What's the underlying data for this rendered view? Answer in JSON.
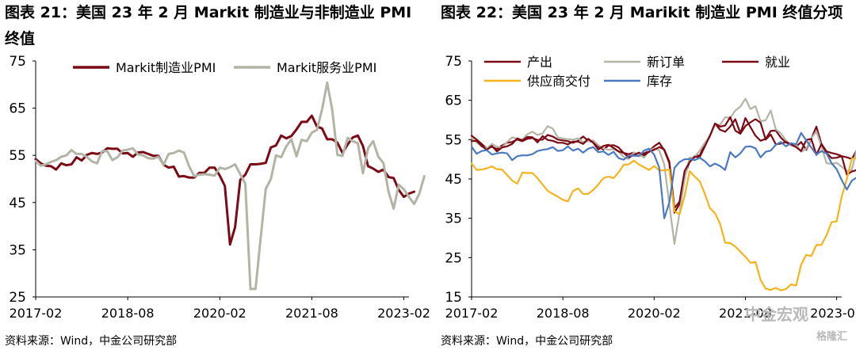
{
  "page": {
    "watermark_brand": "中金宏观",
    "watermark_site": "格隆汇"
  },
  "chart_data": [
    {
      "type": "line",
      "title": "图表 21：美国 23 年 2 月 Markit 制造业与非制造业 PMI 终值",
      "source": "资料来源：Wind，中金公司研究部",
      "ylim": [
        25,
        75
      ],
      "yticks": [
        25,
        35,
        45,
        55,
        65,
        75
      ],
      "xlim": [
        "2017-02",
        "2023-03"
      ],
      "xticks": [
        "2017-02",
        "2018-08",
        "2020-02",
        "2021-08",
        "2023-02"
      ],
      "legend_placement": "top",
      "grid": false,
      "series": [
        {
          "name": "Markit制造业PMI",
          "color": "#7b0a14",
          "start": "2017-02",
          "values": [
            54.2,
            53.3,
            52.8,
            52.7,
            52.0,
            53.3,
            52.9,
            53.1,
            54.6,
            53.9,
            55.1,
            55.5,
            55.3,
            55.6,
            56.5,
            56.4,
            56.4,
            55.4,
            55.5,
            54.7,
            55.6,
            55.7,
            55.3,
            54.9,
            54.9,
            53.0,
            52.4,
            52.6,
            50.5,
            50.6,
            50.3,
            50.3,
            51.3,
            51.3,
            52.4,
            52.4,
            50.7,
            48.5,
            36.1,
            39.8,
            49.8,
            50.9,
            53.1,
            53.1,
            53.2,
            53.4,
            56.7,
            57.1,
            59.2,
            58.6,
            59.1,
            60.5,
            62.1,
            62.1,
            63.4,
            61.1,
            60.7,
            58.4,
            58.4,
            57.7,
            55.5,
            57.3,
            58.8,
            59.2,
            57.0,
            52.7,
            52.2,
            51.5,
            52.0,
            50.4,
            50.2,
            47.7,
            46.2,
            46.9,
            47.3
          ],
          "note": ""
        },
        {
          "name": "Markit服务业PMI",
          "color": "#b4b4a6",
          "start": "2017-02",
          "values": [
            53.8,
            52.8,
            53.1,
            53.6,
            54.0,
            54.7,
            55.0,
            56.1,
            55.3,
            55.3,
            54.7,
            53.7,
            53.3,
            55.9,
            55.9,
            54.0,
            54.6,
            56.0,
            56.2,
            56.5,
            55.2,
            55.0,
            54.4,
            54.3,
            54.7,
            53.0,
            55.3,
            55.5,
            56.0,
            55.6,
            52.7,
            50.6,
            50.9,
            51.0,
            50.9,
            50.7,
            52.4,
            52.1,
            52.5,
            53.1,
            51.0,
            49.0,
            26.7,
            26.7,
            37.5,
            47.9,
            50.0,
            55.0,
            54.6,
            56.9,
            58.4,
            54.8,
            58.3,
            58.0,
            59.8,
            60.4,
            64.7,
            70.4,
            64.6,
            55.1,
            54.9,
            58.7,
            58.0,
            57.6,
            51.2,
            56.5,
            58.0,
            54.7,
            53.4,
            47.3,
            43.7,
            48.8,
            47.8,
            46.2,
            44.7,
            46.8,
            50.6
          ],
          "note": ""
        }
      ]
    },
    {
      "type": "line",
      "title": "图表 22：美国 23 年 2 月 Marikit 制造业 PMI 终值分项",
      "source": "资料来源：Wind，中金公司研究部",
      "ylim": [
        15,
        75
      ],
      "yticks": [
        15,
        25,
        35,
        45,
        55,
        65,
        75
      ],
      "xlim": [
        "2017-02",
        "2023-03"
      ],
      "xticks": [
        "2017-02",
        "2018-08",
        "2020-02",
        "2021-08",
        "2023-02"
      ],
      "legend_placement": "top",
      "grid": false,
      "series": [
        {
          "name": "产出",
          "color": "#7b0a14",
          "start": "2017-02",
          "values": [
            56.0,
            55.0,
            53.9,
            52.7,
            53.2,
            52.6,
            53.5,
            54.2,
            54.4,
            55.0,
            54.6,
            55.2,
            55.4,
            54.9,
            55.0,
            56.2,
            55.8,
            55.0,
            54.8,
            54.6,
            54.2,
            54.7,
            55.8,
            54.7,
            54.4,
            53.2,
            52.5,
            53.5,
            53.6,
            53.0,
            51.6,
            51.3,
            51.7,
            51.0,
            51.5,
            52.1,
            53.3,
            54.2,
            52.3,
            49.0,
            36.4,
            38.6,
            45.7,
            49.4,
            50.8,
            51.0,
            53.8,
            55.9,
            59.1,
            57.5,
            57.0,
            58.3,
            60.2,
            56.6,
            60.5,
            58.2,
            56.0,
            54.7,
            55.2,
            57.2,
            57.3,
            55.5,
            54.3,
            53.6,
            53.2,
            54.4,
            52.4,
            55.2,
            58.3,
            53.9,
            52.0,
            51.6,
            51.3,
            50.8,
            50.5,
            50.1,
            52.4
          ],
          "note": ""
        },
        {
          "name": "新订单",
          "color": "#b4b4a6",
          "start": "2017-02",
          "values": [
            55.4,
            54.3,
            53.2,
            52.8,
            53.9,
            53.2,
            53.0,
            54.4,
            55.6,
            55.2,
            55.0,
            56.4,
            57.0,
            56.2,
            56.6,
            58.4,
            57.8,
            55.6,
            55.3,
            55.1,
            55.0,
            55.3,
            54.4,
            54.6,
            54.8,
            53.6,
            52.8,
            52.4,
            52.6,
            51.9,
            50.6,
            50.1,
            51.7,
            51.2,
            50.4,
            52.2,
            52.8,
            52.3,
            48.7,
            38.5,
            28.5,
            36.3,
            45.0,
            50.4,
            50.6,
            52.2,
            54.2,
            55.9,
            58.8,
            58.8,
            60.7,
            60.5,
            62.4,
            63.4,
            65.4,
            62.8,
            63.5,
            59.7,
            59.9,
            62.4,
            57.6,
            56.6,
            54.8,
            53.5,
            53.7,
            51.9,
            52.7,
            55.3,
            57.1,
            53.3,
            49.0,
            48.8,
            49.1,
            48.1,
            47.0,
            47.4,
            52.8
          ],
          "note": ""
        },
        {
          "name": "就业",
          "color": "#7b0a14",
          "start": "2017-02",
          "values": [
            54.6,
            54.7,
            53.4,
            52.4,
            53.4,
            52.0,
            53.0,
            53.3,
            53.9,
            55.3,
            54.8,
            55.7,
            55.6,
            54.3,
            55.9,
            54.9,
            54.7,
            54.2,
            54.2,
            53.8,
            54.5,
            54.5,
            53.9,
            55.2,
            54.2,
            52.5,
            53.4,
            53.7,
            52.9,
            52.0,
            51.6,
            50.5,
            51.1,
            51.7,
            51.0,
            51.9,
            52.4,
            53.1,
            52.5,
            49.4,
            37.6,
            39.2,
            47.0,
            49.3,
            50.6,
            50.6,
            53.3,
            56.0,
            59.1,
            58.3,
            58.6,
            60.7,
            57.3,
            56.5,
            58.5,
            59.4,
            60.2,
            59.3,
            55.0,
            56.3,
            53.8,
            54.0,
            54.4,
            53.8,
            53.1,
            52.1,
            54.9,
            55.2,
            51.1,
            53.9,
            51.6,
            50.3,
            50.4,
            50.8,
            46.1,
            46.9,
            47.3
          ],
          "note": ""
        },
        {
          "name": "供应商交付",
          "color": "#f5b31c",
          "start": "2017-02",
          "values": [
            48.9,
            47.3,
            47.4,
            47.7,
            48.2,
            47.5,
            47.4,
            46.0,
            44.6,
            43.8,
            46.6,
            46.5,
            46.5,
            45.2,
            43.6,
            42.0,
            41.2,
            40.5,
            39.7,
            39.3,
            41.9,
            42.6,
            41.2,
            41.2,
            42.2,
            43.6,
            45.2,
            45.6,
            45.2,
            46.7,
            48.6,
            48.7,
            49.7,
            48.7,
            48.0,
            47.3,
            48.3,
            47.2,
            47.2,
            47.4,
            36.8,
            36.0,
            40.6,
            47.0,
            45.6,
            44.4,
            41.2,
            37.6,
            36.3,
            33.6,
            28.8,
            28.7,
            27.8,
            26.5,
            25.2,
            23.7,
            23.9,
            19.3,
            17.1,
            16.8,
            17.3,
            16.7,
            17.0,
            18.2,
            17.9,
            23.2,
            25.7,
            25.4,
            28.2,
            28.2,
            30.7,
            34.0,
            34.2,
            40.5,
            45.0,
            50.2,
            50.2,
            50.0,
            52.8
          ],
          "note": ""
        },
        {
          "name": "库存",
          "color": "#4c7ac1",
          "start": "2017-02",
          "values": [
            53.2,
            51.4,
            52.1,
            52.3,
            51.2,
            51.5,
            51.7,
            51.5,
            49.8,
            50.8,
            51.0,
            51.0,
            51.3,
            52.1,
            52.4,
            52.6,
            53.1,
            52.1,
            52.3,
            53.3,
            52.2,
            52.7,
            51.7,
            52.7,
            53.1,
            51.8,
            52.0,
            51.1,
            51.9,
            50.3,
            49.9,
            50.9,
            50.9,
            50.8,
            52.2,
            52.7,
            51.2,
            47.9,
            35.0,
            39.0,
            47.8,
            49.3,
            50.0,
            50.1,
            49.8,
            50.4,
            49.5,
            48.2,
            48.9,
            48.3,
            47.3,
            51.8,
            50.5,
            51.5,
            53.2,
            53.3,
            52.8,
            50.5,
            51.9,
            52.2,
            53.7,
            54.4,
            53.3,
            54.1,
            53.8,
            56.7,
            54.8,
            53.0,
            51.2,
            52.1,
            51.5,
            49.0,
            47.5,
            44.7,
            42.3,
            44.6,
            45.4
          ],
          "note": ""
        }
      ]
    }
  ]
}
